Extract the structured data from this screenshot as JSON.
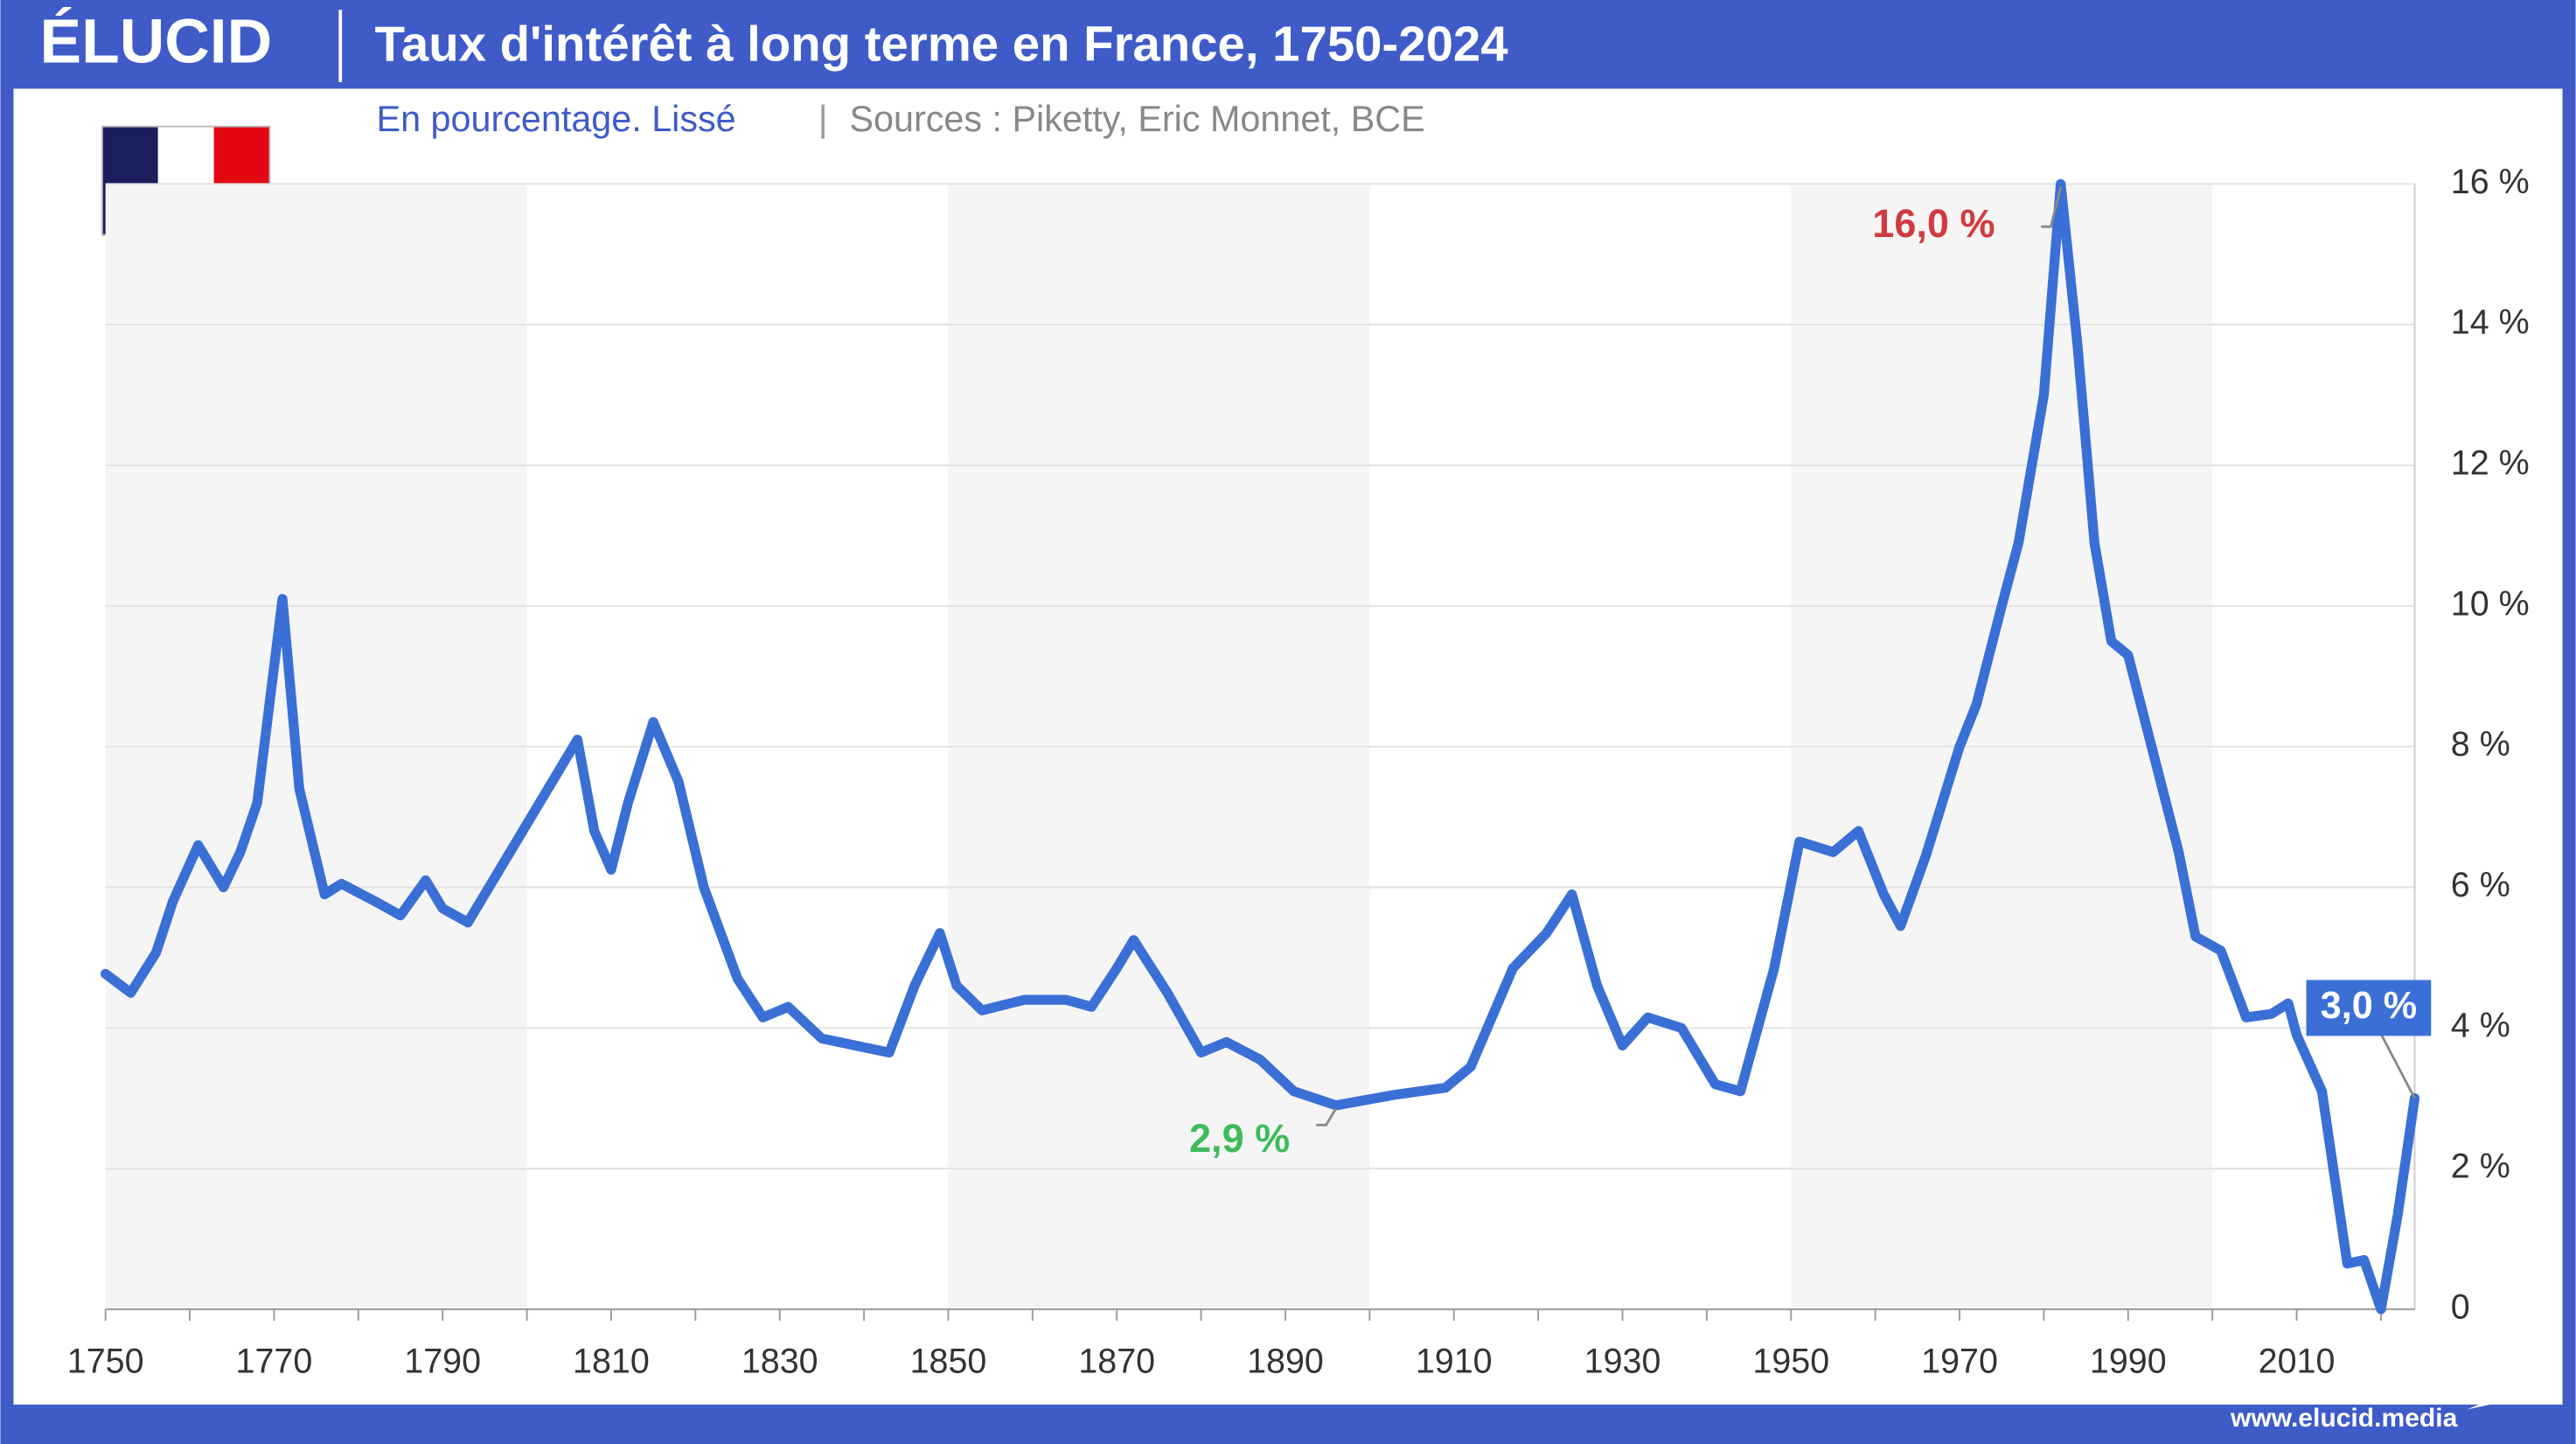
{
  "header": {
    "logo": "ÉLUCID",
    "footer": "www.elucid.media"
  },
  "chart_data": {
    "type": "line",
    "title": "Taux d'intérêt à long terme en France, 1750-2024",
    "subtitle": "En pourcentage. Lissé",
    "source": "Sources : Piketty, Eric Monnet, BCE",
    "xlim": [
      1750,
      2024
    ],
    "xticks": [
      1750,
      1770,
      1790,
      1810,
      1830,
      1850,
      1870,
      1890,
      1910,
      1930,
      1950,
      1970,
      1990,
      2010
    ],
    "xminor_ticks": [
      1760,
      1780,
      1800,
      1820,
      1840,
      1860,
      1880,
      1900,
      1920,
      1940,
      1960,
      1980,
      2000,
      2020
    ],
    "ylim": [
      0,
      16
    ],
    "yticks": [
      {
        "value": 0,
        "label": "0"
      },
      {
        "value": 2,
        "label": "2 %"
      },
      {
        "value": 4,
        "label": "4 %"
      },
      {
        "value": 6,
        "label": "6 %"
      },
      {
        "value": 8,
        "label": "8 %"
      },
      {
        "value": 10,
        "label": "10 %"
      },
      {
        "value": 12,
        "label": "12 %"
      },
      {
        "value": 14,
        "label": "14 %"
      },
      {
        "value": 16,
        "label": "16 %"
      }
    ],
    "grid": true,
    "bands": [
      [
        1750,
        1800
      ],
      [
        1850,
        1900
      ],
      [
        1950,
        2000
      ]
    ],
    "series": [
      {
        "color": "#3a6fd6",
        "style": "solid",
        "x": [
          1750,
          1753,
          1756,
          1758,
          1761,
          1764,
          1766,
          1768,
          1771,
          1773,
          1776,
          1778,
          1782,
          1785,
          1788,
          1790,
          1793,
          1806,
          1808,
          1810,
          1812,
          1815,
          1818,
          1821,
          1825,
          1828,
          1831,
          1835,
          1839,
          1843,
          1846,
          1849,
          1851,
          1854,
          1859,
          1864,
          1867,
          1870,
          1872,
          1876,
          1880,
          1883,
          1887,
          1891,
          1896,
          1903,
          1909,
          1912,
          1917,
          1921,
          1924,
          1927,
          1930,
          1933,
          1937,
          1941,
          1944,
          1948,
          1951,
          1955,
          1958,
          1961,
          1963,
          1966,
          1970,
          1972,
          1975,
          1977,
          1980,
          1982,
          1984,
          1986,
          1988,
          1990,
          1993,
          1996,
          1998,
          2001,
          2004,
          2007,
          2009,
          2010,
          2013,
          2016,
          2018,
          2020,
          2022,
          2024
        ],
        "values": [
          4.77,
          4.5,
          5.07,
          5.8,
          6.6,
          6.0,
          6.5,
          7.2,
          10.1,
          7.4,
          5.9,
          6.05,
          5.8,
          5.6,
          6.1,
          5.7,
          5.5,
          8.1,
          6.8,
          6.25,
          7.2,
          8.35,
          7.5,
          6.0,
          4.7,
          4.15,
          4.3,
          3.85,
          3.75,
          3.65,
          4.6,
          5.35,
          4.6,
          4.25,
          4.4,
          4.4,
          4.3,
          4.85,
          5.25,
          4.5,
          3.65,
          3.8,
          3.55,
          3.1,
          2.9,
          3.05,
          3.15,
          3.45,
          4.85,
          5.35,
          5.9,
          4.6,
          3.75,
          4.15,
          4.0,
          3.2,
          3.1,
          4.85,
          6.65,
          6.5,
          6.8,
          5.9,
          5.45,
          6.45,
          8.0,
          8.6,
          10.0,
          10.9,
          13.0,
          16.0,
          13.7,
          10.9,
          9.5,
          9.3,
          7.9,
          6.5,
          5.3,
          5.1,
          4.15,
          4.2,
          4.35,
          3.9,
          3.1,
          0.65,
          0.7,
          0.0,
          1.35,
          3.0
        ]
      },
      {
        "color": "#3a6fd6",
        "style": "dotted",
        "x": [
          1793,
          1806
        ],
        "values": [
          5.5,
          8.1
        ]
      }
    ],
    "annotations": [
      {
        "x": 1982,
        "value": 16.0,
        "label": "16,0 %",
        "color": "#d23a3f"
      },
      {
        "x": 1896,
        "value": 2.9,
        "label": "2,9 %",
        "color": "#3fbb5c"
      },
      {
        "x": 2024,
        "value": 3.0,
        "label": "3,0 %",
        "color": "#3a6fd6"
      }
    ]
  }
}
